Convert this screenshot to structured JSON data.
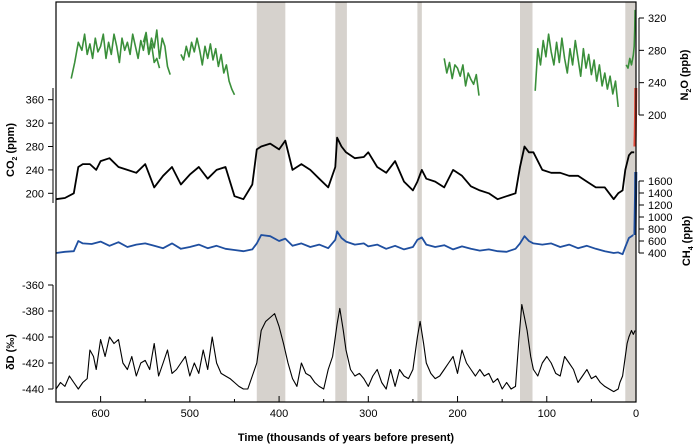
{
  "chart_data": {
    "type": "line",
    "title": "",
    "xlabel": "Time (thousands of years before present)",
    "x_ticks": [
      600,
      500,
      400,
      300,
      200,
      100,
      0
    ],
    "xlim": [
      650,
      0
    ],
    "interglacial_bands": [
      [
        425,
        393
      ],
      [
        337,
        324
      ],
      [
        245,
        240
      ],
      [
        130,
        116
      ],
      [
        12,
        0
      ]
    ],
    "panels": [
      {
        "name": "N2O",
        "label_main": "N",
        "label_sub": "2",
        "label_end": "O (ppb)",
        "axis_side": "right",
        "ticks": [
          200,
          240,
          280,
          320
        ],
        "color": "#3a8f3a",
        "series": [
          {
            "x": [
              633,
              629,
              625,
              621,
              618,
              615,
              612,
              609,
              606,
              603,
              600,
              597,
              594,
              591,
              588,
              585,
              582,
              579,
              576,
              573,
              570,
              567,
              564,
              561,
              558,
              555,
              552,
              549,
              546,
              543,
              540,
              537,
              534
            ],
            "y": [
              245,
              265,
              290,
              280,
              300,
              275,
              288,
              270,
              295,
              278,
              285,
              300,
              270,
              290,
              275,
              300,
              285,
              265,
              295,
              280,
              290,
              275,
              300,
              285,
              270,
              292,
              280,
              300,
              275,
              288,
              265,
              270,
              258
            ]
          },
          {
            "x": [
              552,
              549,
              546,
              543,
              540,
              537,
              534,
              531,
              528,
              525,
              522
            ],
            "y": [
              290,
              302,
              276,
              295,
              283,
              305,
              270,
              295,
              285,
              260,
              250
            ]
          },
          {
            "x": [
              510,
              507,
              504,
              501,
              498,
              495,
              492,
              489,
              486,
              483,
              480,
              477,
              474,
              471,
              468,
              465,
              462,
              459,
              456,
              453,
              450
            ],
            "y": [
              275,
              268,
              285,
              272,
              290,
              278,
              295,
              280,
              262,
              285,
              270,
              288,
              268,
              282,
              260,
              275,
              252,
              262,
              242,
              232,
              225
            ]
          },
          {
            "x": [
              215,
              212,
              209,
              206,
              203,
              200,
              197,
              194,
              191,
              188,
              185,
              182,
              179,
              176
            ],
            "y": [
              270,
              252,
              265,
              245,
              262,
              258,
              248,
              262,
              236,
              252,
              244,
              238,
              250,
              224
            ]
          },
          {
            "x": [
              113,
              110,
              107,
              104,
              101,
              98,
              95,
              92,
              89,
              86,
              83,
              80,
              77,
              74,
              71,
              68,
              65,
              62,
              59,
              56,
              53,
              50,
              47,
              44,
              41,
              38,
              35,
              32,
              29,
              26,
              23,
              20
            ],
            "y": [
              230,
              282,
              262,
              292,
              272,
              300,
              278,
              262,
              290,
              265,
              295,
              270,
              252,
              282,
              262,
              292,
              270,
              248,
              282,
              258,
              275,
              250,
              268,
              242,
              262,
              236,
              252,
              232,
              248,
              226,
              242,
              210
            ]
          },
          {
            "x": [
              11,
              9,
              7,
              5,
              3,
              2,
              1.5,
              1
            ],
            "y": [
              262,
              258,
              270,
              262,
              274,
              285,
              305,
              330
            ]
          }
        ]
      },
      {
        "name": "CO2",
        "label_main": "CO",
        "label_sub": "2",
        "label_end": " (ppm)",
        "axis_side": "left",
        "ticks": [
          200,
          240,
          280,
          320,
          360
        ],
        "color": "#000000",
        "series": [
          {
            "x": [
              650,
              640,
              630,
              625,
              620,
              612,
              605,
              600,
              590,
              580,
              570,
              560,
              550,
              540,
              530,
              520,
              510,
              500,
              490,
              480,
              470,
              460,
              450,
              440,
              430,
              425,
              420,
              410,
              400,
              393,
              385,
              375,
              365,
              355,
              345,
              337,
              335,
              330,
              325,
              315,
              305,
              300,
              290,
              280,
              270,
              260,
              250,
              245,
              240,
              235,
              225,
              215,
              205,
              195,
              185,
              175,
              165,
              155,
              145,
              135,
              130,
              125,
              120,
              115,
              105,
              95,
              85,
              75,
              65,
              55,
              45,
              35,
              25,
              20,
              15,
              12,
              8,
              5,
              2
            ],
            "y": [
              190,
              192,
              200,
              245,
              250,
              250,
              240,
              255,
              260,
              245,
              240,
              235,
              250,
              210,
              230,
              245,
              215,
              232,
              245,
              225,
              240,
              245,
              195,
              190,
              215,
              275,
              280,
              285,
              275,
              290,
              240,
              250,
              240,
              225,
              210,
              245,
              295,
              280,
              270,
              260,
              262,
              270,
              245,
              235,
              255,
              220,
              205,
              220,
              240,
              225,
              220,
              210,
              240,
              230,
              212,
              205,
              200,
              190,
              195,
              200,
              245,
              280,
              270,
              270,
              240,
              235,
              235,
              230,
              230,
              220,
              210,
              210,
              190,
              200,
              205,
              240,
              265,
              270,
              270
            ]
          },
          {
            "x": [
              1.2,
              0.9,
              0.5,
              0.2
            ],
            "y": [
              280,
              300,
              340,
              380
            ]
          }
        ],
        "series_colors": [
          "#000000",
          "#e04a3a"
        ]
      },
      {
        "name": "CH4",
        "label_main": "CH",
        "label_sub": "4",
        "label_end": " (ppb)",
        "axis_side": "right",
        "ticks": [
          400,
          600,
          800,
          1000,
          1200,
          1400,
          1600
        ],
        "color": "#1f4fa0",
        "series": [
          {
            "x": [
              650,
              640,
              630,
              625,
              620,
              610,
              600,
              590,
              580,
              570,
              560,
              550,
              540,
              530,
              520,
              510,
              500,
              490,
              480,
              470,
              460,
              450,
              440,
              430,
              425,
              420,
              410,
              400,
              393,
              385,
              375,
              365,
              355,
              345,
              337,
              335,
              330,
              325,
              315,
              305,
              300,
              290,
              280,
              270,
              260,
              250,
              245,
              240,
              235,
              225,
              215,
              205,
              195,
              185,
              175,
              165,
              155,
              145,
              135,
              130,
              125,
              120,
              115,
              105,
              95,
              85,
              75,
              65,
              55,
              45,
              35,
              25,
              20,
              15,
              12,
              8,
              5,
              3
            ],
            "y": [
              400,
              420,
              430,
              600,
              560,
              550,
              590,
              520,
              580,
              500,
              540,
              560,
              520,
              480,
              560,
              470,
              500,
              540,
              480,
              520,
              470,
              450,
              430,
              460,
              560,
              700,
              680,
              600,
              640,
              520,
              560,
              500,
              540,
              480,
              620,
              760,
              650,
              590,
              540,
              560,
              510,
              540,
              470,
              520,
              460,
              500,
              620,
              660,
              540,
              500,
              530,
              460,
              510,
              470,
              440,
              460,
              430,
              420,
              470,
              560,
              680,
              600,
              560,
              540,
              560,
              500,
              540,
              480,
              520,
              470,
              430,
              400,
              410,
              380,
              500,
              650,
              680,
              700
            ]
          },
          {
            "x": [
              1.2,
              0.9,
              0.5,
              0.2
            ],
            "y": [
              700,
              1000,
              1400,
              1750
            ]
          }
        ],
        "series_colors": [
          "#1f4fa0",
          "#1f4fa0"
        ]
      },
      {
        "name": "dD",
        "label_main": "δD (‰)",
        "axis_side": "left",
        "ticks": [
          -440,
          -420,
          -400,
          -380,
          -360
        ],
        "color": "#000000",
        "series": [
          {
            "x": [
              650,
              645,
              640,
              635,
              630,
              625,
              620,
              615,
              612,
              608,
              605,
              600,
              595,
              590,
              585,
              580,
              575,
              570,
              565,
              560,
              555,
              550,
              545,
              540,
              535,
              530,
              525,
              520,
              515,
              510,
              505,
              500,
              495,
              490,
              485,
              480,
              475,
              470,
              465,
              460,
              455,
              450,
              445,
              440,
              435,
              430,
              425,
              420,
              415,
              410,
              405,
              400,
              395,
              390,
              385,
              380,
              375,
              370,
              365,
              360,
              355,
              350,
              345,
              340,
              335,
              332,
              328,
              325,
              320,
              315,
              310,
              305,
              300,
              295,
              290,
              285,
              280,
              275,
              270,
              265,
              260,
              255,
              250,
              245,
              242,
              238,
              235,
              230,
              225,
              220,
              215,
              210,
              205,
              200,
              195,
              190,
              185,
              180,
              175,
              170,
              165,
              160,
              155,
              150,
              145,
              140,
              135,
              131,
              128,
              125,
              122,
              118,
              115,
              110,
              105,
              100,
              95,
              90,
              85,
              80,
              75,
              70,
              65,
              60,
              55,
              50,
              45,
              40,
              35,
              30,
              25,
              20,
              18,
              15,
              12,
              10,
              8,
              5,
              3,
              1
            ],
            "y": [
              -440,
              -435,
              -438,
              -430,
              -435,
              -440,
              -435,
              -432,
              -410,
              -415,
              -425,
              -402,
              -415,
              -400,
              -405,
              -402,
              -420,
              -425,
              -415,
              -430,
              -420,
              -418,
              -425,
              -405,
              -430,
              -420,
              -410,
              -428,
              -425,
              -420,
              -415,
              -430,
              -420,
              -428,
              -410,
              -425,
              -400,
              -420,
              -428,
              -430,
              -432,
              -435,
              -438,
              -440,
              -440,
              -430,
              -420,
              -395,
              -388,
              -385,
              -382,
              -392,
              -405,
              -420,
              -432,
              -438,
              -420,
              -428,
              -430,
              -435,
              -438,
              -440,
              -425,
              -415,
              -390,
              -378,
              -395,
              -410,
              -425,
              -430,
              -428,
              -432,
              -438,
              -430,
              -425,
              -435,
              -440,
              -425,
              -438,
              -425,
              -430,
              -432,
              -425,
              -400,
              -388,
              -405,
              -420,
              -428,
              -432,
              -430,
              -425,
              -420,
              -415,
              -428,
              -410,
              -420,
              -425,
              -430,
              -425,
              -430,
              -428,
              -435,
              -432,
              -440,
              -435,
              -440,
              -438,
              -400,
              -375,
              -385,
              -395,
              -415,
              -425,
              -430,
              -420,
              -415,
              -420,
              -428,
              -430,
              -415,
              -420,
              -425,
              -435,
              -430,
              -425,
              -432,
              -430,
              -435,
              -438,
              -440,
              -442,
              -440,
              -435,
              -430,
              -415,
              -405,
              -400,
              -395,
              -398,
              -395
            ]
          }
        ],
        "series_colors": [
          "#000000"
        ]
      }
    ]
  }
}
